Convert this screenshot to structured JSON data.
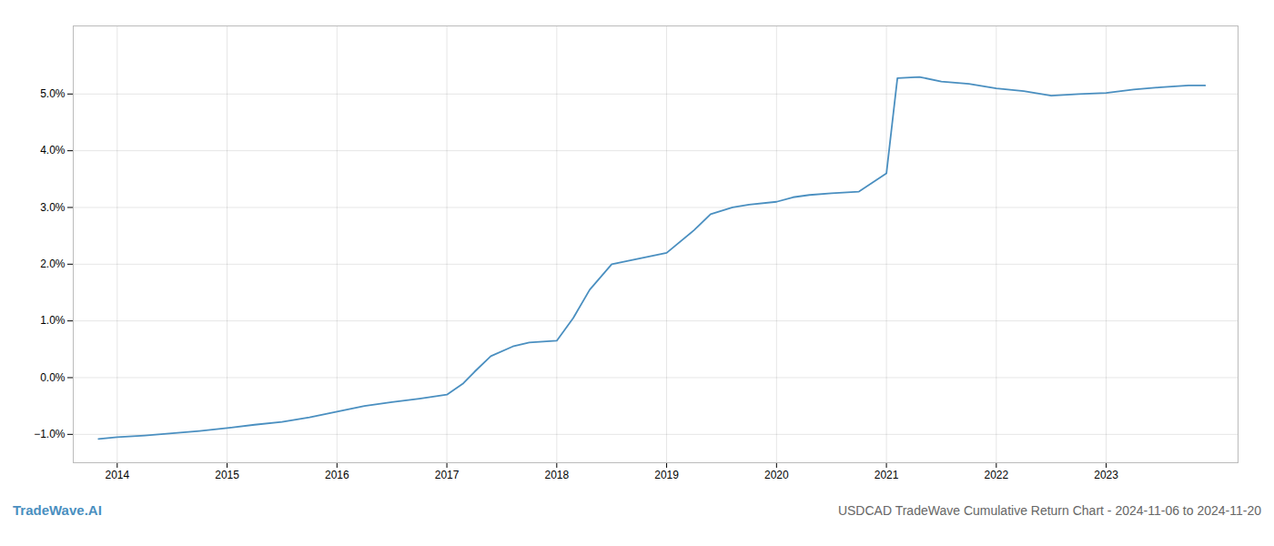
{
  "chart_data": {
    "type": "line",
    "title": "USDCAD TradeWave Cumulative Return Chart - 2024-11-06 to 2024-11-20",
    "annotations": [
      "TradeWave.AI"
    ],
    "color": "#4a8fc0",
    "grid": true,
    "x": [
      2013.83,
      2014.0,
      2014.25,
      2014.5,
      2014.75,
      2015.0,
      2015.25,
      2015.5,
      2015.75,
      2016.0,
      2016.25,
      2016.5,
      2016.75,
      2017.0,
      2017.15,
      2017.25,
      2017.4,
      2017.6,
      2017.75,
      2018.0,
      2018.15,
      2018.3,
      2018.5,
      2018.75,
      2019.0,
      2019.25,
      2019.4,
      2019.6,
      2019.75,
      2020.0,
      2020.15,
      2020.3,
      2020.5,
      2020.75,
      2021.0,
      2021.1,
      2021.3,
      2021.5,
      2021.75,
      2022.0,
      2022.25,
      2022.5,
      2022.75,
      2023.0,
      2023.25,
      2023.5,
      2023.75,
      2023.9
    ],
    "values": [
      -1.08,
      -1.05,
      -1.02,
      -0.98,
      -0.94,
      -0.89,
      -0.83,
      -0.78,
      -0.7,
      -0.6,
      -0.5,
      -0.43,
      -0.37,
      -0.3,
      -0.1,
      0.1,
      0.38,
      0.55,
      0.62,
      0.65,
      1.05,
      1.55,
      2.0,
      2.1,
      2.2,
      2.6,
      2.88,
      3.0,
      3.05,
      3.1,
      3.18,
      3.22,
      3.25,
      3.28,
      3.6,
      5.28,
      5.3,
      5.22,
      5.18,
      5.1,
      5.05,
      4.97,
      5.0,
      5.02,
      5.08,
      5.12,
      5.15,
      5.15
    ],
    "xlim": [
      2013.6,
      2024.2
    ],
    "xticks": [
      2014,
      2015,
      2016,
      2017,
      2018,
      2019,
      2020,
      2021,
      2022,
      2023
    ],
    "ylim": [
      -1.5,
      6.2
    ],
    "yticks": [
      {
        "value": -1.0,
        "label": "−1.0%"
      },
      {
        "value": 0.0,
        "label": "0.0%"
      },
      {
        "value": 1.0,
        "label": "1.0%"
      },
      {
        "value": 2.0,
        "label": "2.0%"
      },
      {
        "value": 3.0,
        "label": "3.0%"
      },
      {
        "value": 4.0,
        "label": "4.0%"
      },
      {
        "value": 5.0,
        "label": "5.0%"
      }
    ]
  }
}
